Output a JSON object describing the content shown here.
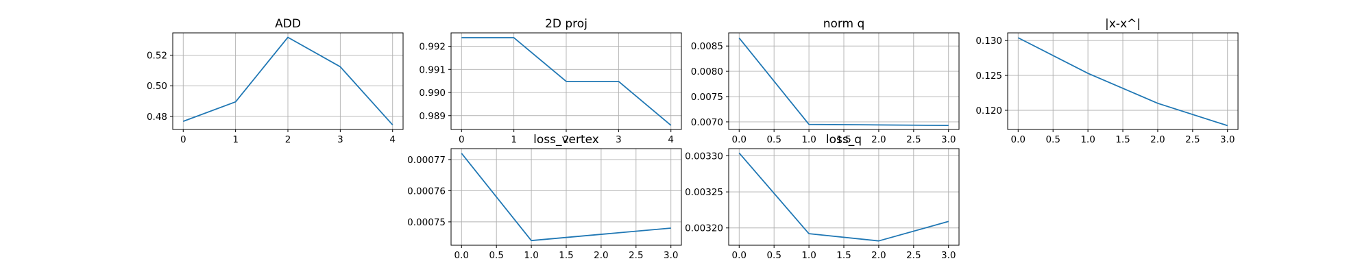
{
  "chart_data": [
    {
      "type": "line",
      "title": "ADD",
      "x": [
        0,
        1,
        2,
        3,
        4
      ],
      "y": [
        0.4768,
        0.4895,
        0.5316,
        0.5124,
        0.4745
      ],
      "xlim": [
        -0.2,
        4.2
      ],
      "ylim": [
        0.4715,
        0.5345
      ],
      "xticks": [
        0,
        1,
        2,
        3,
        4
      ],
      "xtick_labels": [
        "0",
        "1",
        "2",
        "3",
        "4"
      ],
      "yticks": [
        0.48,
        0.5,
        0.52
      ],
      "ytick_labels": [
        "0.48",
        "0.50",
        "0.52"
      ],
      "grid": true,
      "color": "#1f77b4"
    },
    {
      "type": "line",
      "title": "2D proj",
      "x": [
        0,
        1,
        2,
        3,
        4
      ],
      "y": [
        0.99237,
        0.99237,
        0.99048,
        0.99048,
        0.98858
      ],
      "xlim": [
        -0.2,
        4.2
      ],
      "ylim": [
        0.9884,
        0.99258
      ],
      "xticks": [
        0,
        1,
        2,
        3,
        4
      ],
      "xtick_labels": [
        "0",
        "1",
        "2",
        "3",
        "4"
      ],
      "yticks": [
        0.989,
        0.99,
        0.991,
        0.992
      ],
      "ytick_labels": [
        "0.989",
        "0.990",
        "0.991",
        "0.992"
      ],
      "grid": true,
      "color": "#1f77b4"
    },
    {
      "type": "line",
      "title": "norm q",
      "x": [
        0,
        1,
        2,
        3
      ],
      "y": [
        0.00866,
        0.00695,
        0.00694,
        0.00693
      ],
      "xlim": [
        -0.15,
        3.15
      ],
      "ylim": [
        0.00685,
        0.00876
      ],
      "xticks": [
        0,
        0.5,
        1,
        1.5,
        2,
        2.5,
        3
      ],
      "xtick_labels": [
        "0.0",
        "0.5",
        "1.0",
        "1.5",
        "2.0",
        "2.5",
        "3.0"
      ],
      "yticks": [
        0.007,
        0.0075,
        0.008,
        0.0085
      ],
      "ytick_labels": [
        "0.0070",
        "0.0075",
        "0.0080",
        "0.0085"
      ],
      "grid": true,
      "color": "#1f77b4"
    },
    {
      "type": "line",
      "title": "|x-x^|",
      "x": [
        0,
        1,
        2,
        3
      ],
      "y": [
        0.1304,
        0.1253,
        0.121,
        0.1178
      ],
      "xlim": [
        -0.15,
        3.15
      ],
      "ylim": [
        0.11725,
        0.1311
      ],
      "xticks": [
        0,
        0.5,
        1,
        1.5,
        2,
        2.5,
        3
      ],
      "xtick_labels": [
        "0.0",
        "0.5",
        "1.0",
        "1.5",
        "2.0",
        "2.5",
        "3.0"
      ],
      "yticks": [
        0.12,
        0.125,
        0.13
      ],
      "ytick_labels": [
        "0.120",
        "0.125",
        "0.130"
      ],
      "grid": true,
      "color": "#1f77b4"
    },
    {
      "type": "line",
      "title": "loss_vertex",
      "x": [
        0,
        1,
        2,
        3
      ],
      "y": [
        0.000772,
        0.000744,
        0.000746,
        0.000748
      ],
      "xlim": [
        -0.15,
        3.15
      ],
      "ylim": [
        0.0007425,
        0.0007735
      ],
      "xticks": [
        0,
        0.5,
        1,
        1.5,
        2,
        2.5,
        3
      ],
      "xtick_labels": [
        "0.0",
        "0.5",
        "1.0",
        "1.5",
        "2.0",
        "2.5",
        "3.0"
      ],
      "yticks": [
        0.00075,
        0.00076,
        0.00077
      ],
      "ytick_labels": [
        "0.00075",
        "0.00076",
        "0.00077"
      ],
      "grid": true,
      "color": "#1f77b4"
    },
    {
      "type": "line",
      "title": "loss_q",
      "x": [
        0,
        1,
        2,
        3
      ],
      "y": [
        0.003304,
        0.003192,
        0.003182,
        0.003209
      ],
      "xlim": [
        -0.15,
        3.15
      ],
      "ylim": [
        0.003176,
        0.00331
      ],
      "xticks": [
        0,
        0.5,
        1,
        1.5,
        2,
        2.5,
        3
      ],
      "xtick_labels": [
        "0.0",
        "0.5",
        "1.0",
        "1.5",
        "2.0",
        "2.5",
        "3.0"
      ],
      "yticks": [
        0.0032,
        0.00325,
        0.0033
      ],
      "ytick_labels": [
        "0.00320",
        "0.00325",
        "0.00330"
      ],
      "grid": true,
      "color": "#1f77b4"
    }
  ]
}
